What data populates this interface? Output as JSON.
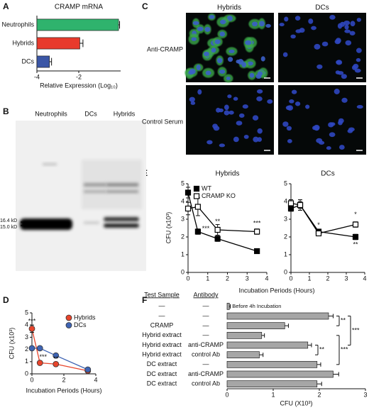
{
  "panel_labels": [
    "A",
    "B",
    "C",
    "D",
    "E",
    "F"
  ],
  "blot": {
    "lanes": [
      "Neutrophils",
      "DCs",
      "Hybrids"
    ],
    "markers": [
      "16.4 kD",
      "15.0 kD"
    ]
  },
  "micrographs": {
    "columns": [
      "Hybrids",
      "DCs"
    ],
    "rows": [
      "Anti-CRAMP",
      "Control Serum"
    ]
  },
  "chart_data": [
    {
      "type": "hbar",
      "title": "CRAMP mRNA",
      "xlabel": "Relative Expression (Log₁₀)",
      "categories": [
        "Neutrophils",
        "Hybrids",
        "DCs"
      ],
      "values": [
        -0.1,
        -1.95,
        -3.4
      ],
      "errors": [
        0.05,
        0.15,
        0.1
      ],
      "colors": [
        "#2fb36d",
        "#e83a2c",
        "#3b56a6"
      ],
      "xlim": [
        -4,
        0
      ],
      "xticks": [
        -4,
        -2
      ]
    },
    {
      "type": "line",
      "xlabel": "Incubation Periods (Hours)",
      "ylabel": "CFU (x10³)",
      "x": [
        0,
        0.5,
        1.5,
        3.5
      ],
      "series": [
        {
          "name": "Hybrids",
          "color": "#e8452c",
          "marker": "circle",
          "filled": true,
          "values": [
            3.7,
            0.9,
            0.8,
            0.25
          ],
          "errors": [
            0.3,
            0.1,
            0.1,
            0.05
          ]
        },
        {
          "name": "DCs",
          "color": "#3e64b4",
          "marker": "circle",
          "filled": true,
          "values": [
            2.1,
            2.1,
            1.5,
            0.35
          ],
          "errors": [
            0.1,
            0.1,
            0.15,
            0.05
          ]
        }
      ],
      "xlim": [
        0,
        4
      ],
      "xticks": [
        0,
        2,
        4
      ],
      "ylim": [
        0,
        5
      ],
      "yticks": [
        0,
        1,
        2,
        3,
        4,
        5
      ],
      "annotations": [
        "***",
        "***",
        "**"
      ]
    },
    {
      "type": "line",
      "title": "Hybrids",
      "xlabel": "Incubation Periods (Hours)",
      "ylabel": "CFU (x10³)",
      "x": [
        0,
        0.5,
        1.5,
        3.5
      ],
      "series": [
        {
          "name": "WT",
          "color": "#000000",
          "marker": "square",
          "filled": true,
          "values": [
            4.5,
            2.3,
            1.9,
            1.2
          ],
          "errors": [
            0.3,
            0.15,
            0.15,
            0.1
          ]
        },
        {
          "name": "CRAMP KO",
          "color": "#000000",
          "marker": "square",
          "filled": false,
          "values": [
            3.6,
            3.7,
            2.4,
            2.3
          ],
          "errors": [
            0.35,
            0.5,
            0.3,
            0.15
          ]
        }
      ],
      "xlim": [
        0,
        4
      ],
      "xticks": [
        0,
        1,
        2,
        3,
        4
      ],
      "ylim": [
        0,
        5
      ],
      "yticks": [
        0,
        1,
        2,
        3,
        4,
        5
      ],
      "annotations": [
        "***",
        "**",
        "***"
      ]
    },
    {
      "type": "line",
      "title": "DCs",
      "x": [
        0,
        0.5,
        1.5,
        3.5
      ],
      "series": [
        {
          "color": "#000000",
          "marker": "square",
          "filled": true,
          "values": [
            3.6,
            3.8,
            2.3,
            2.0
          ],
          "errors": [
            0.15,
            0.3,
            0.1,
            0.15
          ]
        },
        {
          "color": "#000000",
          "marker": "square",
          "filled": false,
          "values": [
            3.9,
            3.8,
            2.2,
            2.7
          ],
          "errors": [
            0.2,
            0.2,
            0.1,
            0.15
          ]
        }
      ],
      "xlim": [
        0,
        4
      ],
      "xticks": [
        0,
        1,
        2,
        3,
        4
      ],
      "ylim": [
        0,
        5
      ],
      "yticks": [
        0,
        1,
        2,
        3,
        4,
        5
      ],
      "annotations": [
        "*",
        "*",
        "**"
      ]
    },
    {
      "type": "hbar",
      "xlabel": "CFU (X10³)",
      "headers": [
        "Test Sample",
        "Antibody"
      ],
      "note": "Before 4h Incubation",
      "categories": [
        "—",
        "—",
        "CRAMP",
        "Hybrid extract",
        "Hybrid extract",
        "Hybrid extract",
        "DC extract",
        "DC extract",
        "DC extract"
      ],
      "antibodies": [
        "—",
        "—",
        "—",
        "—",
        "anti-CRAMP",
        "control Ab",
        "—",
        "anti-CRAMP",
        "control Ab"
      ],
      "values": [
        0.05,
        2.2,
        1.25,
        0.75,
        1.75,
        0.7,
        1.95,
        2.3,
        1.95
      ],
      "errors": [
        0.02,
        0.1,
        0.08,
        0.06,
        0.08,
        0.08,
        0.08,
        0.12,
        0.1
      ],
      "color": "#a6a6a6",
      "xlim": [
        0,
        3
      ],
      "xticks": [
        0,
        1,
        2,
        3
      ],
      "annotations": [
        "**",
        "***",
        "**",
        "***"
      ]
    }
  ]
}
